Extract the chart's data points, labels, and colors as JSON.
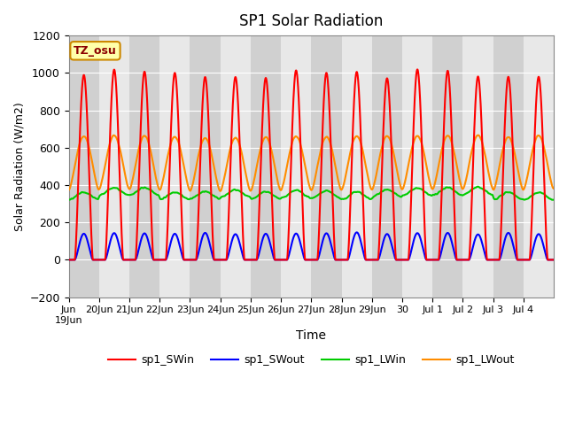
{
  "title": "SP1 Solar Radiation",
  "xlabel": "Time",
  "ylabel": "Solar Radiation (W/m2)",
  "ylim": [
    -200,
    1200
  ],
  "tz_label": "TZ_osu",
  "series": {
    "sp1_SWin": {
      "color": "#FF0000",
      "lw": 1.5
    },
    "sp1_SWout": {
      "color": "#0000FF",
      "lw": 1.5
    },
    "sp1_LWin": {
      "color": "#00CC00",
      "lw": 1.5
    },
    "sp1_LWout": {
      "color": "#FF8C00",
      "lw": 1.5
    }
  },
  "x_tick_labels": [
    "Jun\n19Jun",
    "20Jun",
    "21Jun",
    "22Jun",
    "23Jun",
    "24Jun",
    "25Jun",
    "26Jun",
    "27Jun",
    "28Jun",
    "29Jun",
    "30",
    "Jul 1",
    "Jul 2",
    "Jul 3",
    "Jul 4"
  ],
  "bg_color": "#FFFFFF",
  "plot_bg": "#E8E8E8",
  "stripe_color": "#D0D0D0"
}
